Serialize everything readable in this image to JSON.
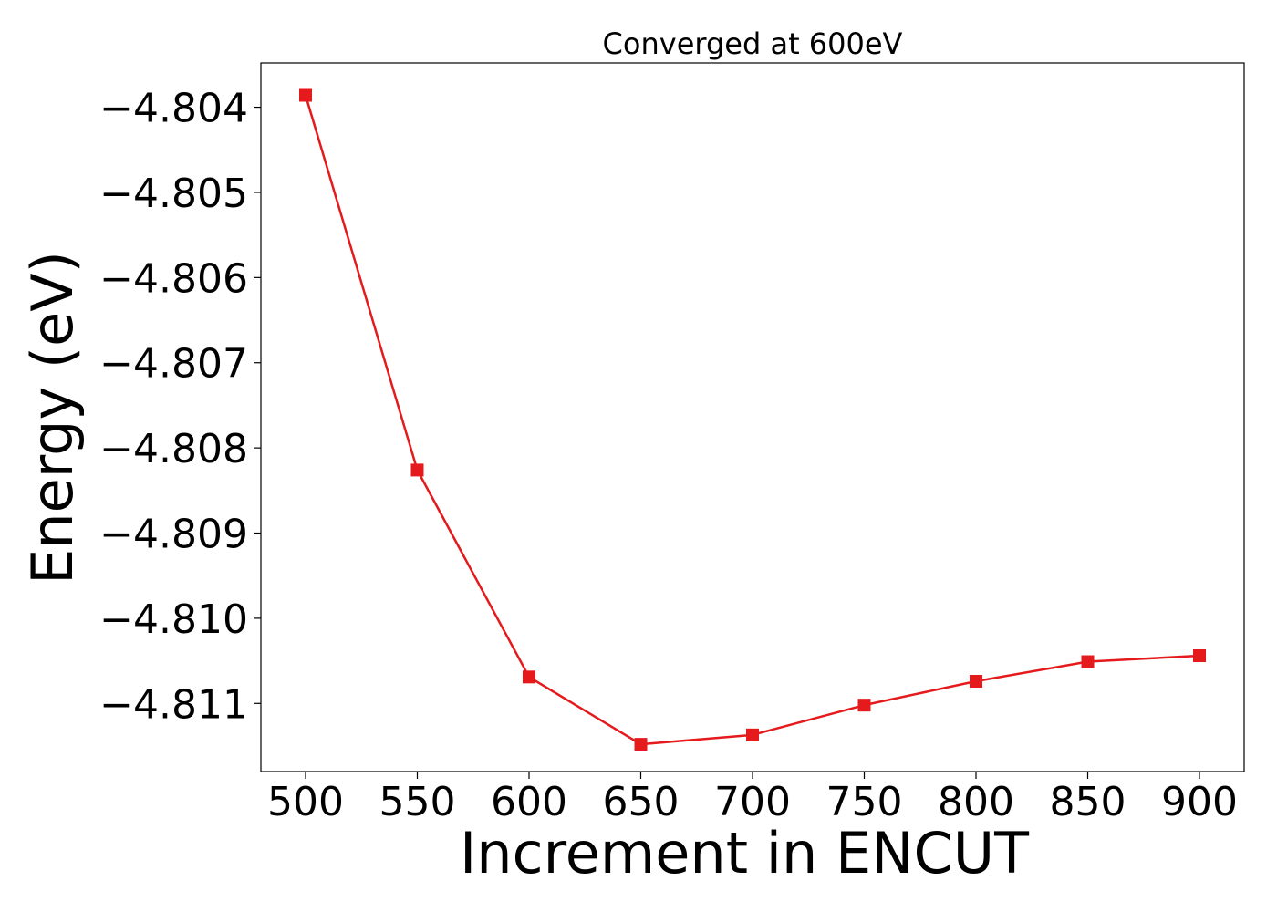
{
  "chart_data": {
    "type": "line",
    "title": "Converged at 600eV",
    "xlabel": "Increment in ENCUT",
    "ylabel": "Energy (eV)",
    "x": [
      500,
      550,
      600,
      650,
      700,
      750,
      800,
      850,
      900
    ],
    "series": [
      {
        "values": [
          -4.80386,
          -4.80826,
          -4.81069,
          -4.81148,
          -4.81137,
          -4.81102,
          -4.81074,
          -4.81051,
          -4.81044
        ],
        "color": "#e41a1c",
        "marker": "square"
      }
    ],
    "xticks": [
      "500",
      "550",
      "600",
      "650",
      "700",
      "750",
      "800",
      "850",
      "900"
    ],
    "yticks": [
      {
        "value": -4.804,
        "label": "−4.804"
      },
      {
        "value": -4.805,
        "label": "−4.805"
      },
      {
        "value": -4.806,
        "label": "−4.806"
      },
      {
        "value": -4.807,
        "label": "−4.807"
      },
      {
        "value": -4.808,
        "label": "−4.808"
      },
      {
        "value": -4.809,
        "label": "−4.809"
      },
      {
        "value": -4.81,
        "label": "−4.810"
      },
      {
        "value": -4.811,
        "label": "−4.811"
      }
    ],
    "xlim": [
      480,
      920
    ],
    "ylim": [
      -4.8118,
      -4.80348
    ],
    "grid": false,
    "legend": "none"
  }
}
